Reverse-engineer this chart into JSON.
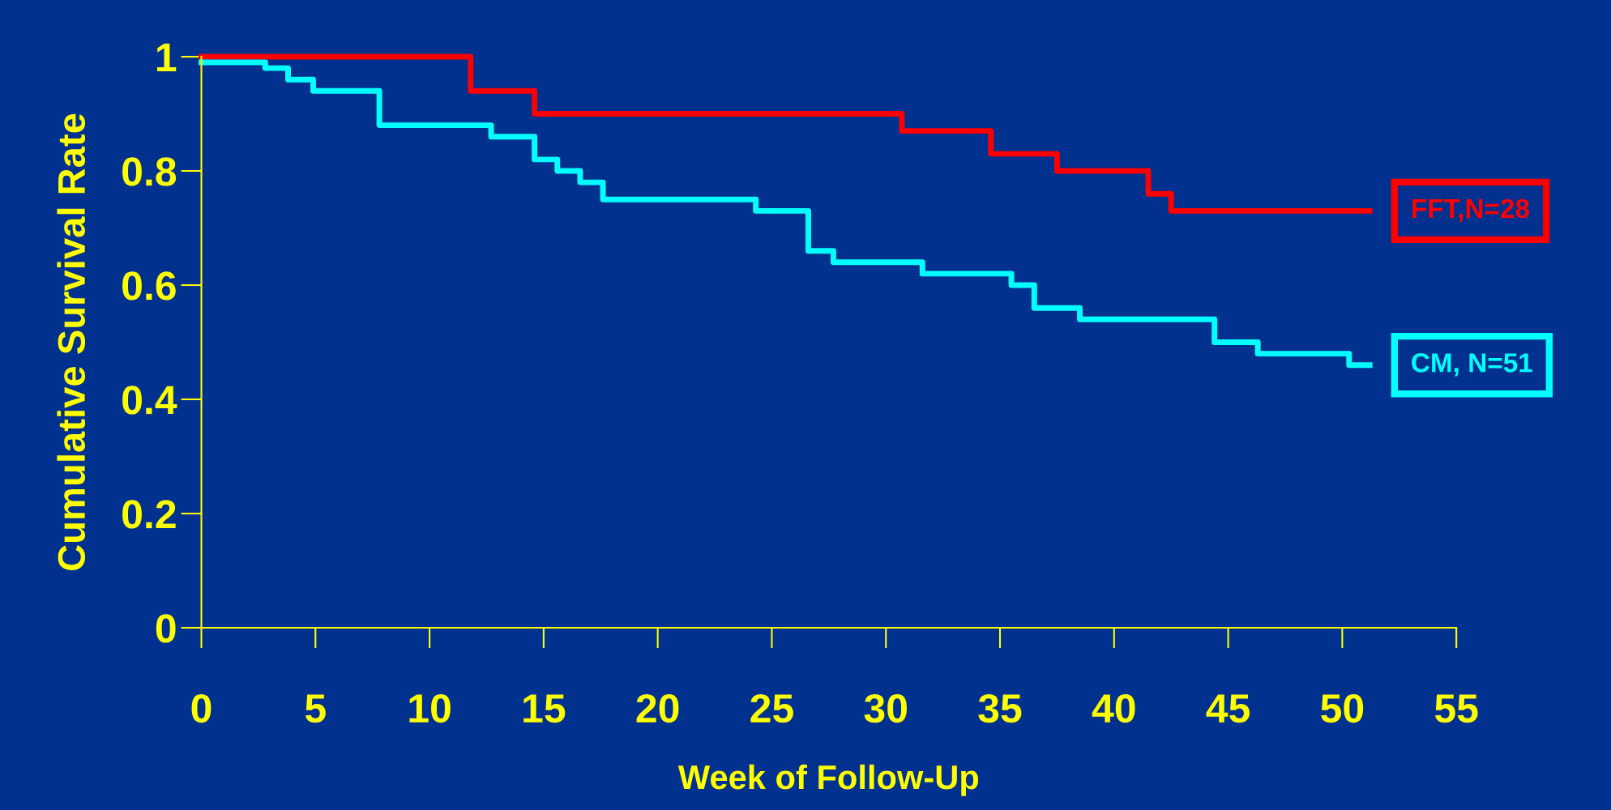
{
  "chart_data": {
    "type": "step",
    "xlabel": "Week of Follow-Up",
    "ylabel": "Cumulative Survival Rate",
    "xlim": [
      0,
      55
    ],
    "ylim": [
      0,
      1
    ],
    "xticks": [
      0,
      5,
      10,
      15,
      20,
      25,
      30,
      35,
      40,
      45,
      50,
      55
    ],
    "yticks": [
      0,
      0.2,
      0.4,
      0.6,
      0.8,
      1
    ],
    "grid": false,
    "legend": false,
    "series": [
      {
        "name": "FFT,N=28",
        "color": "#ff0000",
        "x": [
          0,
          11.8,
          14.6,
          30.7,
          34.6,
          37.5,
          41.5,
          42.5,
          51.2
        ],
        "values": [
          1.0,
          0.94,
          0.9,
          0.87,
          0.83,
          0.8,
          0.76,
          0.73,
          0.73
        ]
      },
      {
        "name": "CM, N=51",
        "color": "#00ffff",
        "x": [
          0,
          2.8,
          3.8,
          4.9,
          7.8,
          12.7,
          14.6,
          15.6,
          16.6,
          17.6,
          24.3,
          26.6,
          27.7,
          31.6,
          35.5,
          36.5,
          38.5,
          44.4,
          46.3,
          50.3,
          51.2
        ],
        "values": [
          0.99,
          0.98,
          0.96,
          0.94,
          0.88,
          0.86,
          0.82,
          0.8,
          0.78,
          0.75,
          0.73,
          0.66,
          0.64,
          0.62,
          0.6,
          0.56,
          0.54,
          0.5,
          0.48,
          0.46,
          0.46
        ]
      }
    ]
  }
}
